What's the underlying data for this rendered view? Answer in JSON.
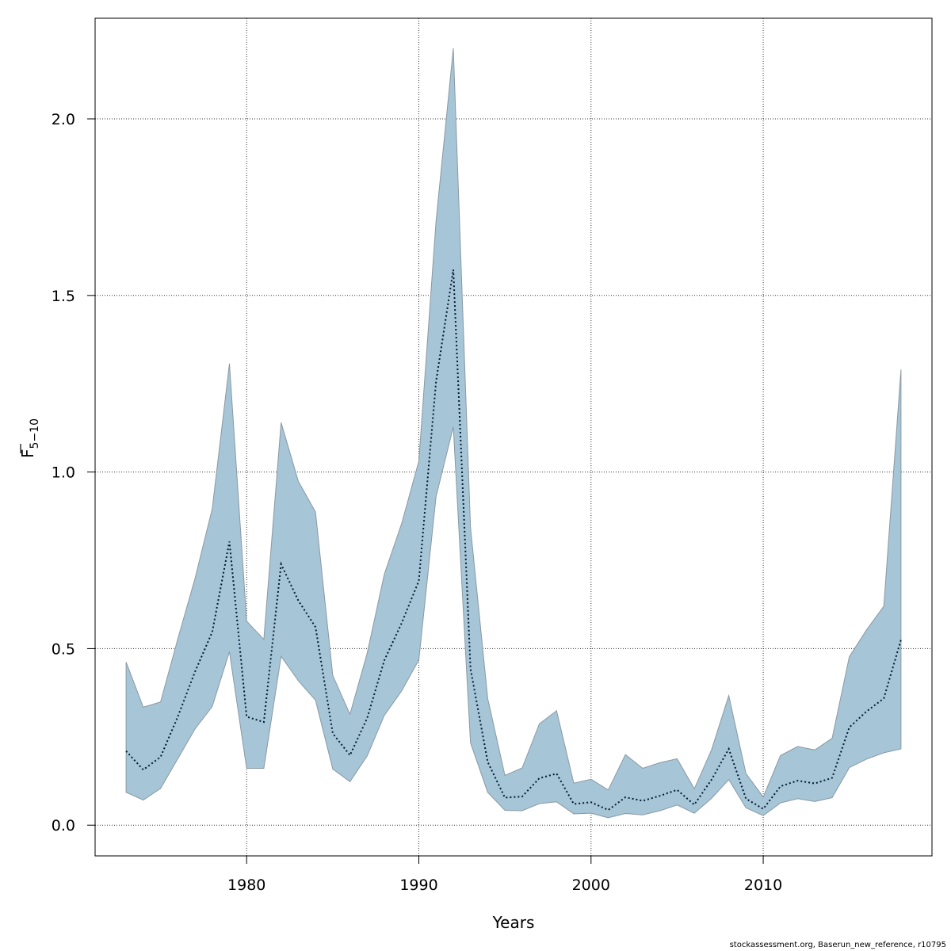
{
  "chart_data": {
    "type": "area",
    "title": "",
    "xlabel": "Years",
    "ylabel": {
      "symbol": "F",
      "subscript": "5−10"
    },
    "xlim": [
      1971.2,
      2019.8
    ],
    "ylim": [
      -0.087,
      2.285
    ],
    "x_ticks": [
      1980,
      1990,
      2000,
      2010
    ],
    "y_ticks": [
      0.0,
      0.5,
      1.0,
      1.5,
      2.0
    ],
    "y_tick_labels": [
      "0.0",
      "0.5",
      "1.0",
      "1.5",
      "2.0"
    ],
    "grid": true,
    "legend": "none",
    "colors": {
      "band_fill": "#a6c5d6",
      "band_stroke": "#8a99a3",
      "estimate_line": "#001a33",
      "grid": "#333333"
    },
    "series": [
      {
        "role": "estimate",
        "x": [
          1973,
          1974,
          1975,
          1976,
          1977,
          1978,
          1979,
          1980,
          1981,
          1982,
          1983,
          1984,
          1985,
          1986,
          1987,
          1988,
          1989,
          1990,
          1991,
          1992,
          1993,
          1994,
          1995,
          1996,
          1997,
          1998,
          1999,
          2000,
          2001,
          2002,
          2003,
          2004,
          2005,
          2006,
          2007,
          2008,
          2009,
          2010,
          2011,
          2012,
          2013,
          2014,
          2015,
          2016,
          2017,
          2018
        ],
        "y": [
          0.21,
          0.157,
          0.193,
          0.307,
          0.434,
          0.547,
          0.803,
          0.307,
          0.292,
          0.739,
          0.636,
          0.561,
          0.26,
          0.198,
          0.303,
          0.467,
          0.572,
          0.692,
          1.256,
          1.573,
          0.443,
          0.179,
          0.078,
          0.081,
          0.133,
          0.146,
          0.06,
          0.065,
          0.043,
          0.079,
          0.069,
          0.083,
          0.1,
          0.058,
          0.129,
          0.216,
          0.075,
          0.046,
          0.11,
          0.126,
          0.118,
          0.134,
          0.277,
          0.322,
          0.359,
          0.525
        ]
      },
      {
        "role": "upper",
        "x": [
          1973,
          1974,
          1975,
          1976,
          1977,
          1978,
          1979,
          1980,
          1981,
          1982,
          1983,
          1984,
          1985,
          1986,
          1987,
          1988,
          1989,
          1990,
          1991,
          1992,
          1993,
          1994,
          1995,
          1996,
          1997,
          1998,
          1999,
          2000,
          2001,
          2002,
          2003,
          2004,
          2005,
          2006,
          2007,
          2008,
          2009,
          2010,
          2011,
          2012,
          2013,
          2014,
          2015,
          2016,
          2017,
          2018
        ],
        "y": [
          0.462,
          0.334,
          0.349,
          0.527,
          0.698,
          0.896,
          1.307,
          0.578,
          0.526,
          1.14,
          0.974,
          0.887,
          0.424,
          0.314,
          0.487,
          0.711,
          0.854,
          1.031,
          1.71,
          2.2,
          0.843,
          0.359,
          0.141,
          0.162,
          0.287,
          0.324,
          0.119,
          0.13,
          0.1,
          0.2,
          0.161,
          0.177,
          0.188,
          0.103,
          0.214,
          0.367,
          0.146,
          0.08,
          0.197,
          0.223,
          0.213,
          0.246,
          0.477,
          0.553,
          0.62,
          1.29
        ]
      },
      {
        "role": "lower",
        "x": [
          1973,
          1974,
          1975,
          1976,
          1977,
          1978,
          1979,
          1980,
          1981,
          1982,
          1983,
          1984,
          1985,
          1986,
          1987,
          1988,
          1989,
          1990,
          1991,
          1992,
          1993,
          1994,
          1995,
          1996,
          1997,
          1998,
          1999,
          2000,
          2001,
          2002,
          2003,
          2004,
          2005,
          2006,
          2007,
          2008,
          2009,
          2010,
          2011,
          2012,
          2013,
          2014,
          2015,
          2016,
          2017,
          2018
        ],
        "y": [
          0.093,
          0.071,
          0.104,
          0.188,
          0.272,
          0.336,
          0.491,
          0.161,
          0.161,
          0.478,
          0.409,
          0.354,
          0.159,
          0.123,
          0.196,
          0.311,
          0.38,
          0.468,
          0.93,
          1.128,
          0.233,
          0.093,
          0.042,
          0.041,
          0.061,
          0.066,
          0.032,
          0.034,
          0.021,
          0.033,
          0.029,
          0.041,
          0.057,
          0.034,
          0.076,
          0.129,
          0.049,
          0.027,
          0.063,
          0.075,
          0.067,
          0.078,
          0.163,
          0.187,
          0.205,
          0.216
        ]
      }
    ]
  },
  "footer": {
    "credit": "stockassessment.org, Baserun_new_reference, r10795"
  }
}
